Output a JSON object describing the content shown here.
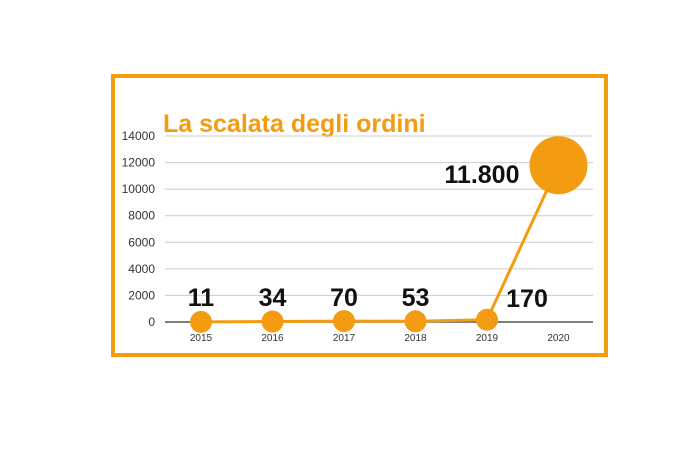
{
  "chart_data": {
    "type": "line",
    "title": "La scalata degli ordini",
    "categories": [
      "2015",
      "2016",
      "2017",
      "2018",
      "2019",
      "2020"
    ],
    "values": [
      11,
      34,
      70,
      53,
      170,
      11800
    ],
    "data_labels": [
      "11",
      "34",
      "70",
      "53",
      "170",
      "11.800"
    ],
    "y_ticks": [
      "0",
      "2000",
      "4000",
      "6000",
      "8000",
      "10000",
      "12000",
      "14000"
    ],
    "ylim": [
      0,
      14000
    ],
    "grid": true,
    "legend": "none",
    "xlabel": "",
    "ylabel": ""
  },
  "colors": {
    "accent": "#f39c12",
    "frame": "#f39c12",
    "grid": "#cccccc",
    "text": "#111111"
  }
}
